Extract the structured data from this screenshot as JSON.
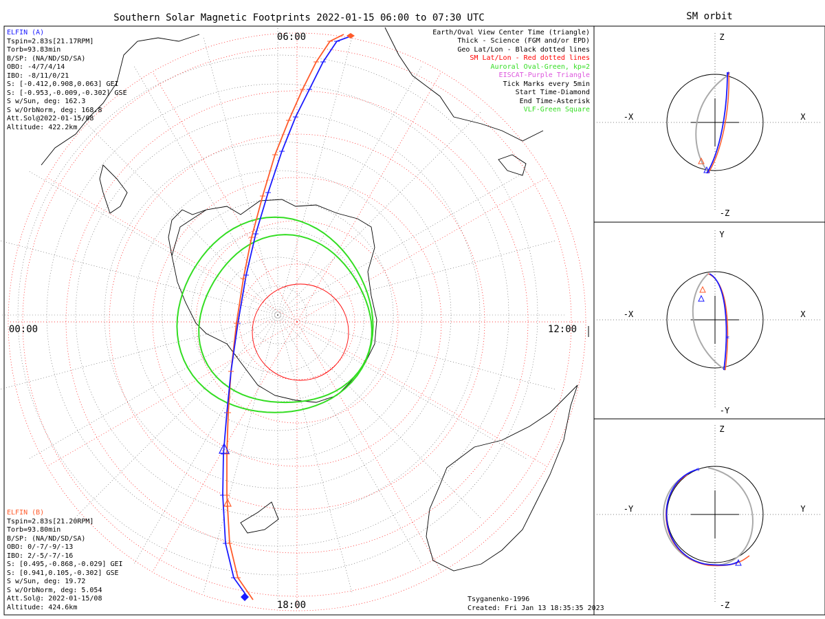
{
  "title": "Southern Solar Magnetic Footprints 2022-01-15 06:00 to 07:30 UTC",
  "orbit_title": "SM orbit",
  "colors": {
    "blue": "#1a1aff",
    "orange": "#ff5a2a",
    "red": "#ff0000",
    "green": "#33dd22",
    "purple": "#dd55dd",
    "gray": "#aaaaaa",
    "black": "#000000"
  },
  "time_labels": {
    "top": "06:00",
    "left": "00:00",
    "right": "12:00",
    "bottom": "18:00"
  },
  "elfin_a": {
    "name": "ELFIN (A)",
    "lines": [
      "Tspin=2.83s[21.17RPM]",
      "Torb=93.83min",
      "B/SP: (NA/ND/SD/SA)",
      "OBO: -4/7/4/14",
      "IBO: -8/11/0/21",
      "S: [-0.412,0.908,0.063] GEI",
      "S: [-0.953,-0.009,-0.302] GSE",
      "S w/Sun, deg: 162.3",
      "S w/OrbNorm, deg: 168.8",
      "Att.Sol@2022-01-15/08",
      "Altitude: 422.2km"
    ]
  },
  "elfin_b": {
    "name": "ELFIN (B)",
    "lines": [
      "Tspin=2.83s[21.20RPM]",
      "Torb=93.80min",
      "B/SP: (NA/ND/SD/SA)",
      "OBO: 0/-7/-9/-13",
      "IBO: 2/-5/-7/-16",
      "S: [0.495,-0.868,-0.029] GEI",
      "S: [0.941,0.105,-0.302] GSE",
      "S w/Sun, deg: 19.72",
      "S w/OrbNorm, deg: 5.054",
      "Att.Sol@: 2022-01-15/08",
      "Altitude: 424.6km"
    ]
  },
  "legend": [
    {
      "text": "Earth/Oval View Center Time (triangle)",
      "color": "black"
    },
    {
      "text": "Thick - Science (FGM and/or EPD)",
      "color": "black"
    },
    {
      "text": "Geo Lat/Lon - Black dotted lines",
      "color": "black"
    },
    {
      "text": "SM Lat/Lon - Red dotted lines",
      "color": "red"
    },
    {
      "text": "Auroral Oval-Green, kp=2",
      "color": "green"
    },
    {
      "text": "EISCAT-Purple Triangle",
      "color": "purple"
    },
    {
      "text": "Tick Marks every 5min",
      "color": "black"
    },
    {
      "text": "Start Time-Diamond",
      "color": "black"
    },
    {
      "text": "End Time-Asterisk",
      "color": "black"
    },
    {
      "text": "VLF-Green Square",
      "color": "green"
    }
  ],
  "footer": {
    "model": "Tsyganenko-1996",
    "created": "Created: Fri Jan 13 18:35:35 2023"
  },
  "sm_panels": [
    {
      "top": "Z",
      "bottom": "-Z",
      "left": "-X",
      "right": "X"
    },
    {
      "top": "Y",
      "bottom": "-Y",
      "left": "-X",
      "right": "X"
    },
    {
      "top": "Z",
      "bottom": "-Z",
      "left": "-Y",
      "right": "Y"
    }
  ],
  "chart_data": {
    "type": "polar-map",
    "projection": "southern polar, magnetic local time",
    "series": [
      {
        "name": "ELFIN (A) footprint",
        "color": "blue"
      },
      {
        "name": "ELFIN (B) footprint",
        "color": "orange"
      },
      {
        "name": "Auroral Oval kp=2",
        "color": "green"
      }
    ]
  }
}
